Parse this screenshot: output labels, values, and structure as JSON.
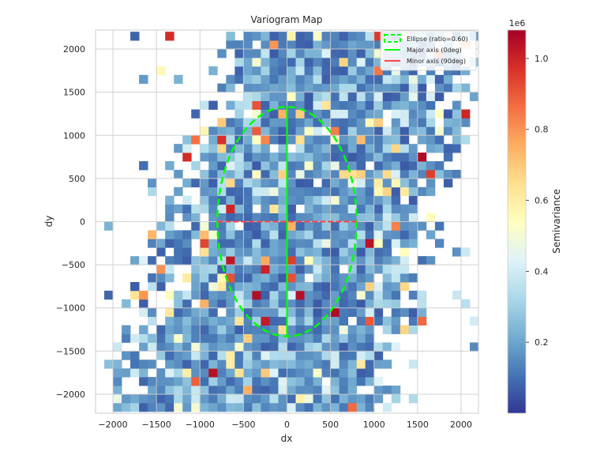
{
  "chart_data": {
    "type": "heatmap",
    "title": "Variogram Map",
    "xlabel": "dx",
    "ylabel": "dy",
    "xlim": [
      -2200,
      2200
    ],
    "ylim": [
      -2220,
      2220
    ],
    "xticks": [
      -2000,
      -1500,
      -1000,
      -500,
      0,
      500,
      1000,
      1500,
      2000
    ],
    "xtick_labels": [
      "−2000",
      "−1500",
      "−1000",
      "−500",
      "0",
      "500",
      "1000",
      "1500",
      "2000"
    ],
    "yticks": [
      2000,
      1500,
      1000,
      500,
      0,
      -500,
      -1000,
      -1500,
      -2000
    ],
    "ytick_labels": [
      "2000",
      "1500",
      "1000",
      "500",
      "0",
      "−500",
      "−1000",
      "−1500",
      "−2000"
    ],
    "grid": true,
    "heatmap": {
      "cell_size": 100,
      "colormap": "RdYlBu_r",
      "approx_note": "cells estimated; mostly blue (0.1–0.3e6) within a band tilted from lower-left to upper-right, with scattered high outliers"
    },
    "colorbar": {
      "label": "Semivariance",
      "exponent_label": "1e6",
      "range": [
        0.0,
        1.08
      ],
      "ticks": [
        0.2,
        0.4,
        0.6,
        0.8,
        1.0
      ],
      "tick_labels": [
        "0.2",
        "0.4",
        "0.6",
        "0.8",
        "1.0"
      ],
      "colors": [
        "#313695",
        "#4575b4",
        "#74add1",
        "#abd9e9",
        "#e0f3f8",
        "#ffffbf",
        "#fee090",
        "#fdae61",
        "#f46d43",
        "#d73027",
        "#a50026"
      ]
    },
    "ellipse": {
      "center": [
        0,
        0
      ],
      "semi_major": 1330,
      "semi_minor": 800,
      "ratio": 0.6,
      "angle_deg": 0,
      "color": "#00ff00"
    },
    "major_axis": {
      "from": [
        0,
        -1330
      ],
      "to": [
        0,
        1330
      ],
      "color": "#00ff00",
      "angle_deg": 0
    },
    "minor_axis": {
      "from": [
        -800,
        0
      ],
      "to": [
        800,
        0
      ],
      "color": "#ff4444",
      "angle_deg": 90
    },
    "legend": {
      "position": "top-right",
      "entries": [
        {
          "label": "Ellipse (ratio=0.60)",
          "style": "dashed-box",
          "color": "#00ff00"
        },
        {
          "label": "Major axis (0deg)",
          "style": "line",
          "color": "#00ff00"
        },
        {
          "label": "Minor axis (90deg)",
          "style": "line",
          "color": "#ff4444"
        }
      ]
    }
  }
}
